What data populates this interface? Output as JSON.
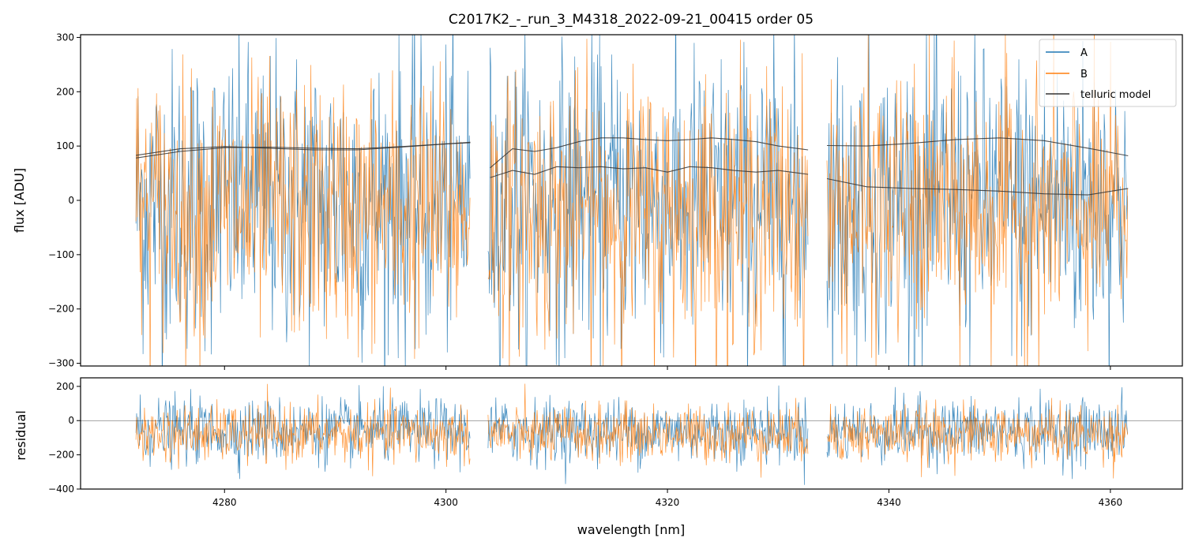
{
  "chart_data": [
    {
      "type": "line",
      "panel": "main",
      "title": "C2017K2_-_run_3_M4318_2022-09-21_00415  order 05",
      "xlabel": "",
      "ylabel": "flux [ADU]",
      "xlim": [
        4267,
        4366.5
      ],
      "ylim": [
        -305,
        305
      ],
      "xticks": [
        4280,
        4300,
        4320,
        4340,
        4360
      ],
      "yticks": [
        -300,
        -200,
        -100,
        0,
        100,
        200,
        300
      ],
      "ytick_labels": [
        "−300",
        "−200",
        "−100",
        "0",
        "100",
        "200",
        "300"
      ],
      "segments": [
        [
          4272.0,
          4302.2
        ],
        [
          4303.8,
          4332.7
        ],
        [
          4334.4,
          4361.6
        ]
      ],
      "legend_position": "top-right",
      "series": [
        {
          "name": "A",
          "color": "#1f77b4",
          "approx_level": 0,
          "approx_spread": 250
        },
        {
          "name": "B",
          "color": "#ff7f0e",
          "approx_level": -20,
          "approx_spread": 220
        },
        {
          "name": "telluric model",
          "color": "#333333",
          "curves": [
            {
              "x": [
                4272.0,
                4276,
                4280,
                4284,
                4288,
                4292,
                4296,
                4300,
                4302.2
              ],
              "y": [
                78,
                90,
                97,
                98,
                96,
                95,
                99,
                104,
                106
              ]
            },
            {
              "x": [
                4272.0,
                4276,
                4280,
                4284,
                4288,
                4292,
                4296,
                4300,
                4302.2
              ],
              "y": [
                83,
                95,
                99,
                96,
                93,
                93,
                98,
                104,
                107
              ]
            },
            {
              "x": [
                4304.0,
                4306,
                4308,
                4310,
                4312,
                4314,
                4316,
                4318,
                4320,
                4322,
                4324,
                4326,
                4328,
                4330,
                4332.7
              ],
              "y": [
                60,
                95,
                90,
                97,
                108,
                115,
                115,
                112,
                110,
                112,
                115,
                112,
                108,
                100,
                93
              ]
            },
            {
              "x": [
                4304.0,
                4306,
                4308,
                4310,
                4312,
                4314,
                4316,
                4318,
                4320,
                4322,
                4324,
                4326,
                4328,
                4330,
                4332.7
              ],
              "y": [
                42,
                55,
                48,
                62,
                60,
                62,
                58,
                60,
                52,
                62,
                60,
                55,
                52,
                55,
                48
              ]
            },
            {
              "x": [
                4334.4,
                4338,
                4342,
                4346,
                4350,
                4354,
                4358,
                4361.6
              ],
              "y": [
                101,
                100,
                105,
                112,
                115,
                110,
                96,
                82
              ]
            },
            {
              "x": [
                4334.4,
                4338,
                4342,
                4346,
                4350,
                4354,
                4358,
                4361.6
              ],
              "y": [
                40,
                25,
                22,
                20,
                17,
                12,
                10,
                22
              ]
            }
          ]
        }
      ]
    },
    {
      "type": "line",
      "panel": "residual",
      "xlabel": "wavelength [nm]",
      "ylabel": "residual",
      "xlim": [
        4267,
        4366.5
      ],
      "ylim": [
        -400,
        250
      ],
      "xticks": [
        4280,
        4300,
        4320,
        4340,
        4360
      ],
      "xtick_labels": [
        "4280",
        "4300",
        "4320",
        "4340",
        "4360"
      ],
      "yticks": [
        -400,
        -200,
        0,
        200
      ],
      "ytick_labels": [
        "−400",
        "−200",
        "0",
        "200"
      ],
      "hline": 0,
      "series": [
        {
          "name": "A",
          "color": "#1f77b4",
          "approx_level": -60,
          "approx_spread": 170
        },
        {
          "name": "B",
          "color": "#ff7f0e",
          "approx_level": -80,
          "approx_spread": 150
        }
      ]
    }
  ]
}
